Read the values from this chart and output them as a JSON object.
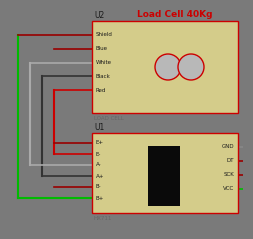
{
  "bg_color": "#7a7a7a",
  "title": "Load Cell 40Kg",
  "title_color": "#cc0000",
  "title_fontsize": 6.5,
  "component_fill": "#d4cc8a",
  "component_edge": "#cc0000",
  "text_color": "#1a1a1a",
  "label_color": "#666666",
  "u2_label": "U2",
  "u2_pins_left": [
    "Shield",
    "Blue",
    "White",
    "Black",
    "Red"
  ],
  "u2_bottom_label": "LOAD CELL",
  "u1_label": "U1",
  "u1_pins_left": [
    "E+",
    "E-",
    "A-",
    "A+",
    "B-",
    "B+"
  ],
  "u1_pins_right": [
    "GND",
    "DT",
    "SCK",
    "VCC"
  ],
  "u1_bottom_label": "HX711"
}
